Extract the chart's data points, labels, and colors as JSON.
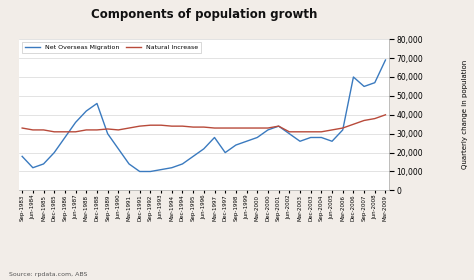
{
  "title": "Components of population growth",
  "source": "Source: rpdata.com, ABS",
  "ylabel": "Quarterly change in population",
  "ylim": [
    0,
    80000
  ],
  "yticks": [
    0,
    10000,
    20000,
    30000,
    40000,
    50000,
    60000,
    70000,
    80000
  ],
  "legend_labels": [
    "Net Overseas Migration",
    "Natural Increase"
  ],
  "migration_color": "#3a7abf",
  "natural_color": "#b84a3a",
  "bg_color": "#f2ede8",
  "plot_bg": "#ffffff",
  "grid_color": "#d8d8d8",
  "x_labels": [
    "Sep-1983",
    "Jun-1984",
    "Mar-1985",
    "Dec-1985",
    "Sep-1986",
    "Jun-1987",
    "Mar-1988",
    "Dec-1988",
    "Sep-1989",
    "Jun-1990",
    "Mar-1991",
    "Dec-1991",
    "Sep-1992",
    "Jun-1993",
    "Mar-1994",
    "Dec-1994",
    "Sep-1995",
    "Jun-1996",
    "Mar-1997",
    "Dec-1997",
    "Sep-1998",
    "Jun-1999",
    "Mar-2000",
    "Dec-2000",
    "Sep-2001",
    "Jun-2002",
    "Mar-2003",
    "Dec-2003",
    "Sep-2004",
    "Jun-2005",
    "Mar-2006",
    "Dec-2006",
    "Sep-2007",
    "Jun-2008",
    "Mar-2009"
  ],
  "migration_values": [
    18000,
    12000,
    14000,
    20000,
    28000,
    36000,
    42000,
    46000,
    30000,
    22000,
    14000,
    10000,
    10000,
    11000,
    12000,
    14000,
    18000,
    22000,
    28000,
    20000,
    24000,
    26000,
    28000,
    32000,
    34000,
    30000,
    26000,
    28000,
    28000,
    26000,
    32000,
    60000,
    55000,
    57000,
    69000
  ],
  "natural_values": [
    33000,
    32000,
    32000,
    31000,
    31000,
    31000,
    32000,
    32000,
    32500,
    32000,
    33000,
    34000,
    34500,
    34500,
    34000,
    34000,
    33500,
    33500,
    33000,
    33000,
    33000,
    33000,
    33000,
    33000,
    34000,
    31000,
    31000,
    31000,
    31000,
    32000,
    33000,
    35000,
    37000,
    38000,
    40000
  ]
}
